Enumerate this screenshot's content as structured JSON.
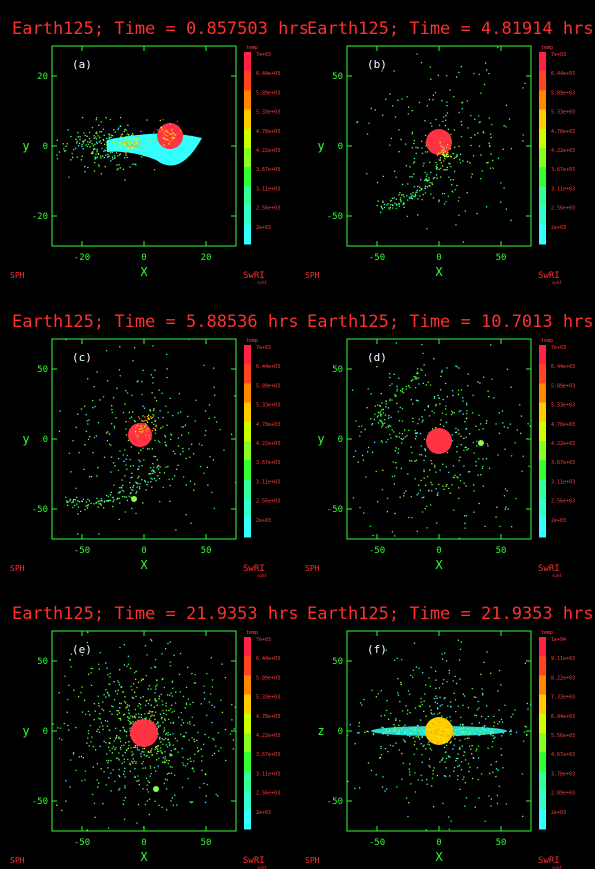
{
  "colors": {
    "background": "#000000",
    "title": "#ff3030",
    "axis": "#30ff30",
    "colorbar": [
      "#33ffff",
      "#33ffcc",
      "#33ff99",
      "#33ff33",
      "#88ff22",
      "#ccff00",
      "#ffcc00",
      "#ff8800",
      "#ff4422",
      "#ff2244"
    ]
  },
  "logos": {
    "left": "SPH",
    "right": "SwRI",
    "right_small": "sph4"
  },
  "panels": [
    {
      "id": "a",
      "title": "Earth125; Time = 0.857503 hrs",
      "label": "(a)",
      "xlabel": "X",
      "ylabel": "y",
      "xticks": [
        "-20",
        "0",
        "20"
      ],
      "yticks": [
        "20",
        "0",
        "-20"
      ],
      "colorbar_title": "temp",
      "colorbar_labels": [
        "7e+03",
        "6.44e+03",
        "5.89e+03",
        "5.33e+03",
        "4.78e+03",
        "4.22e+03",
        "3.67e+03",
        "3.11e+03",
        "2.56e+03",
        "2e+03"
      ]
    },
    {
      "id": "b",
      "title": "Earth125; Time = 4.81914 hrs",
      "label": "(b)",
      "xlabel": "X",
      "ylabel": "y",
      "xticks": [
        "-50",
        "0",
        "50"
      ],
      "yticks": [
        "50",
        "0",
        "-50"
      ],
      "colorbar_title": "temp",
      "colorbar_labels": [
        "7e+03",
        "6.44e+03",
        "5.89e+03",
        "5.33e+03",
        "4.78e+03",
        "4.22e+03",
        "3.67e+03",
        "3.11e+03",
        "2.56e+03",
        "2e+03"
      ]
    },
    {
      "id": "c",
      "title": "Earth125; Time = 5.88536 hrs",
      "label": "(c)",
      "xlabel": "X",
      "ylabel": "y",
      "xticks": [
        "-50",
        "0",
        "50"
      ],
      "yticks": [
        "50",
        "0",
        "-50"
      ],
      "colorbar_title": "temp",
      "colorbar_labels": [
        "7e+03",
        "6.44e+03",
        "5.89e+03",
        "5.33e+03",
        "4.78e+03",
        "4.22e+03",
        "3.67e+03",
        "3.11e+03",
        "2.56e+03",
        "2e+03"
      ]
    },
    {
      "id": "d",
      "title": "Earth125; Time = 10.7013 hrs",
      "label": "(d)",
      "xlabel": "X",
      "ylabel": "y",
      "xticks": [
        "-50",
        "0",
        "50"
      ],
      "yticks": [
        "50",
        "0",
        "-50"
      ],
      "colorbar_title": "temp",
      "colorbar_labels": [
        "7e+03",
        "6.44e+03",
        "5.89e+03",
        "5.33e+03",
        "4.78e+03",
        "4.22e+03",
        "3.67e+03",
        "3.11e+03",
        "2.56e+03",
        "2e+03"
      ]
    },
    {
      "id": "e",
      "title": "Earth125; Time = 21.9353 hrs",
      "label": "(e)",
      "xlabel": "X",
      "ylabel": "y",
      "xticks": [
        "-50",
        "0",
        "50"
      ],
      "yticks": [
        "50",
        "0",
        "-50"
      ],
      "colorbar_title": "temp",
      "colorbar_labels": [
        "7e+03",
        "6.44e+03",
        "5.89e+03",
        "5.33e+03",
        "4.78e+03",
        "4.22e+03",
        "3.67e+03",
        "3.11e+03",
        "2.56e+03",
        "2e+03"
      ]
    },
    {
      "id": "f",
      "title": "Earth125; Time = 21.9353 hrs",
      "label": "(f)",
      "xlabel": "X",
      "ylabel": "z",
      "xticks": [
        "-50",
        "0",
        "50"
      ],
      "yticks": [
        "50",
        "0",
        "-50"
      ],
      "colorbar_title": "temp",
      "colorbar_labels": [
        "1e+04",
        "9.11e+03",
        "8.22e+03",
        "7.33e+03",
        "6.44e+03",
        "5.56e+03",
        "4.67e+03",
        "3.78e+03",
        "2.89e+03",
        "2e+03"
      ]
    }
  ]
}
